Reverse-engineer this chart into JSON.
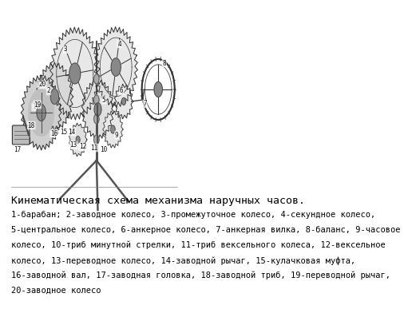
{
  "title": "Кинематическая схема механизма наручных часов.",
  "caption_lines": [
    "1-барабан; 2-заводное колесо, 3-промежуточное колесо, 4-секундное колесо,",
    "5-центральное колесо, 6-анкерное колесо, 7-анкерная вилка, 8-баланс, 9-часовое",
    "колесо, 10-триб минутной стрелки, 11-триб вексельного колеса, 12-вексельное",
    "колесо, 13-переводное колесо, 14-заводной рычаг, 15-кулачковая муфта,",
    "16-заводной вал, 17-заводная головка, 18-заводной триб, 19-переводной рычаг,",
    "20-заводное колесо"
  ],
  "bg_color": "#ffffff",
  "title_fontsize": 9.5,
  "caption_fontsize": 7.5,
  "title_color": "#000000",
  "caption_color": "#000000",
  "fig_width": 4.0,
  "fig_height": 3.87
}
